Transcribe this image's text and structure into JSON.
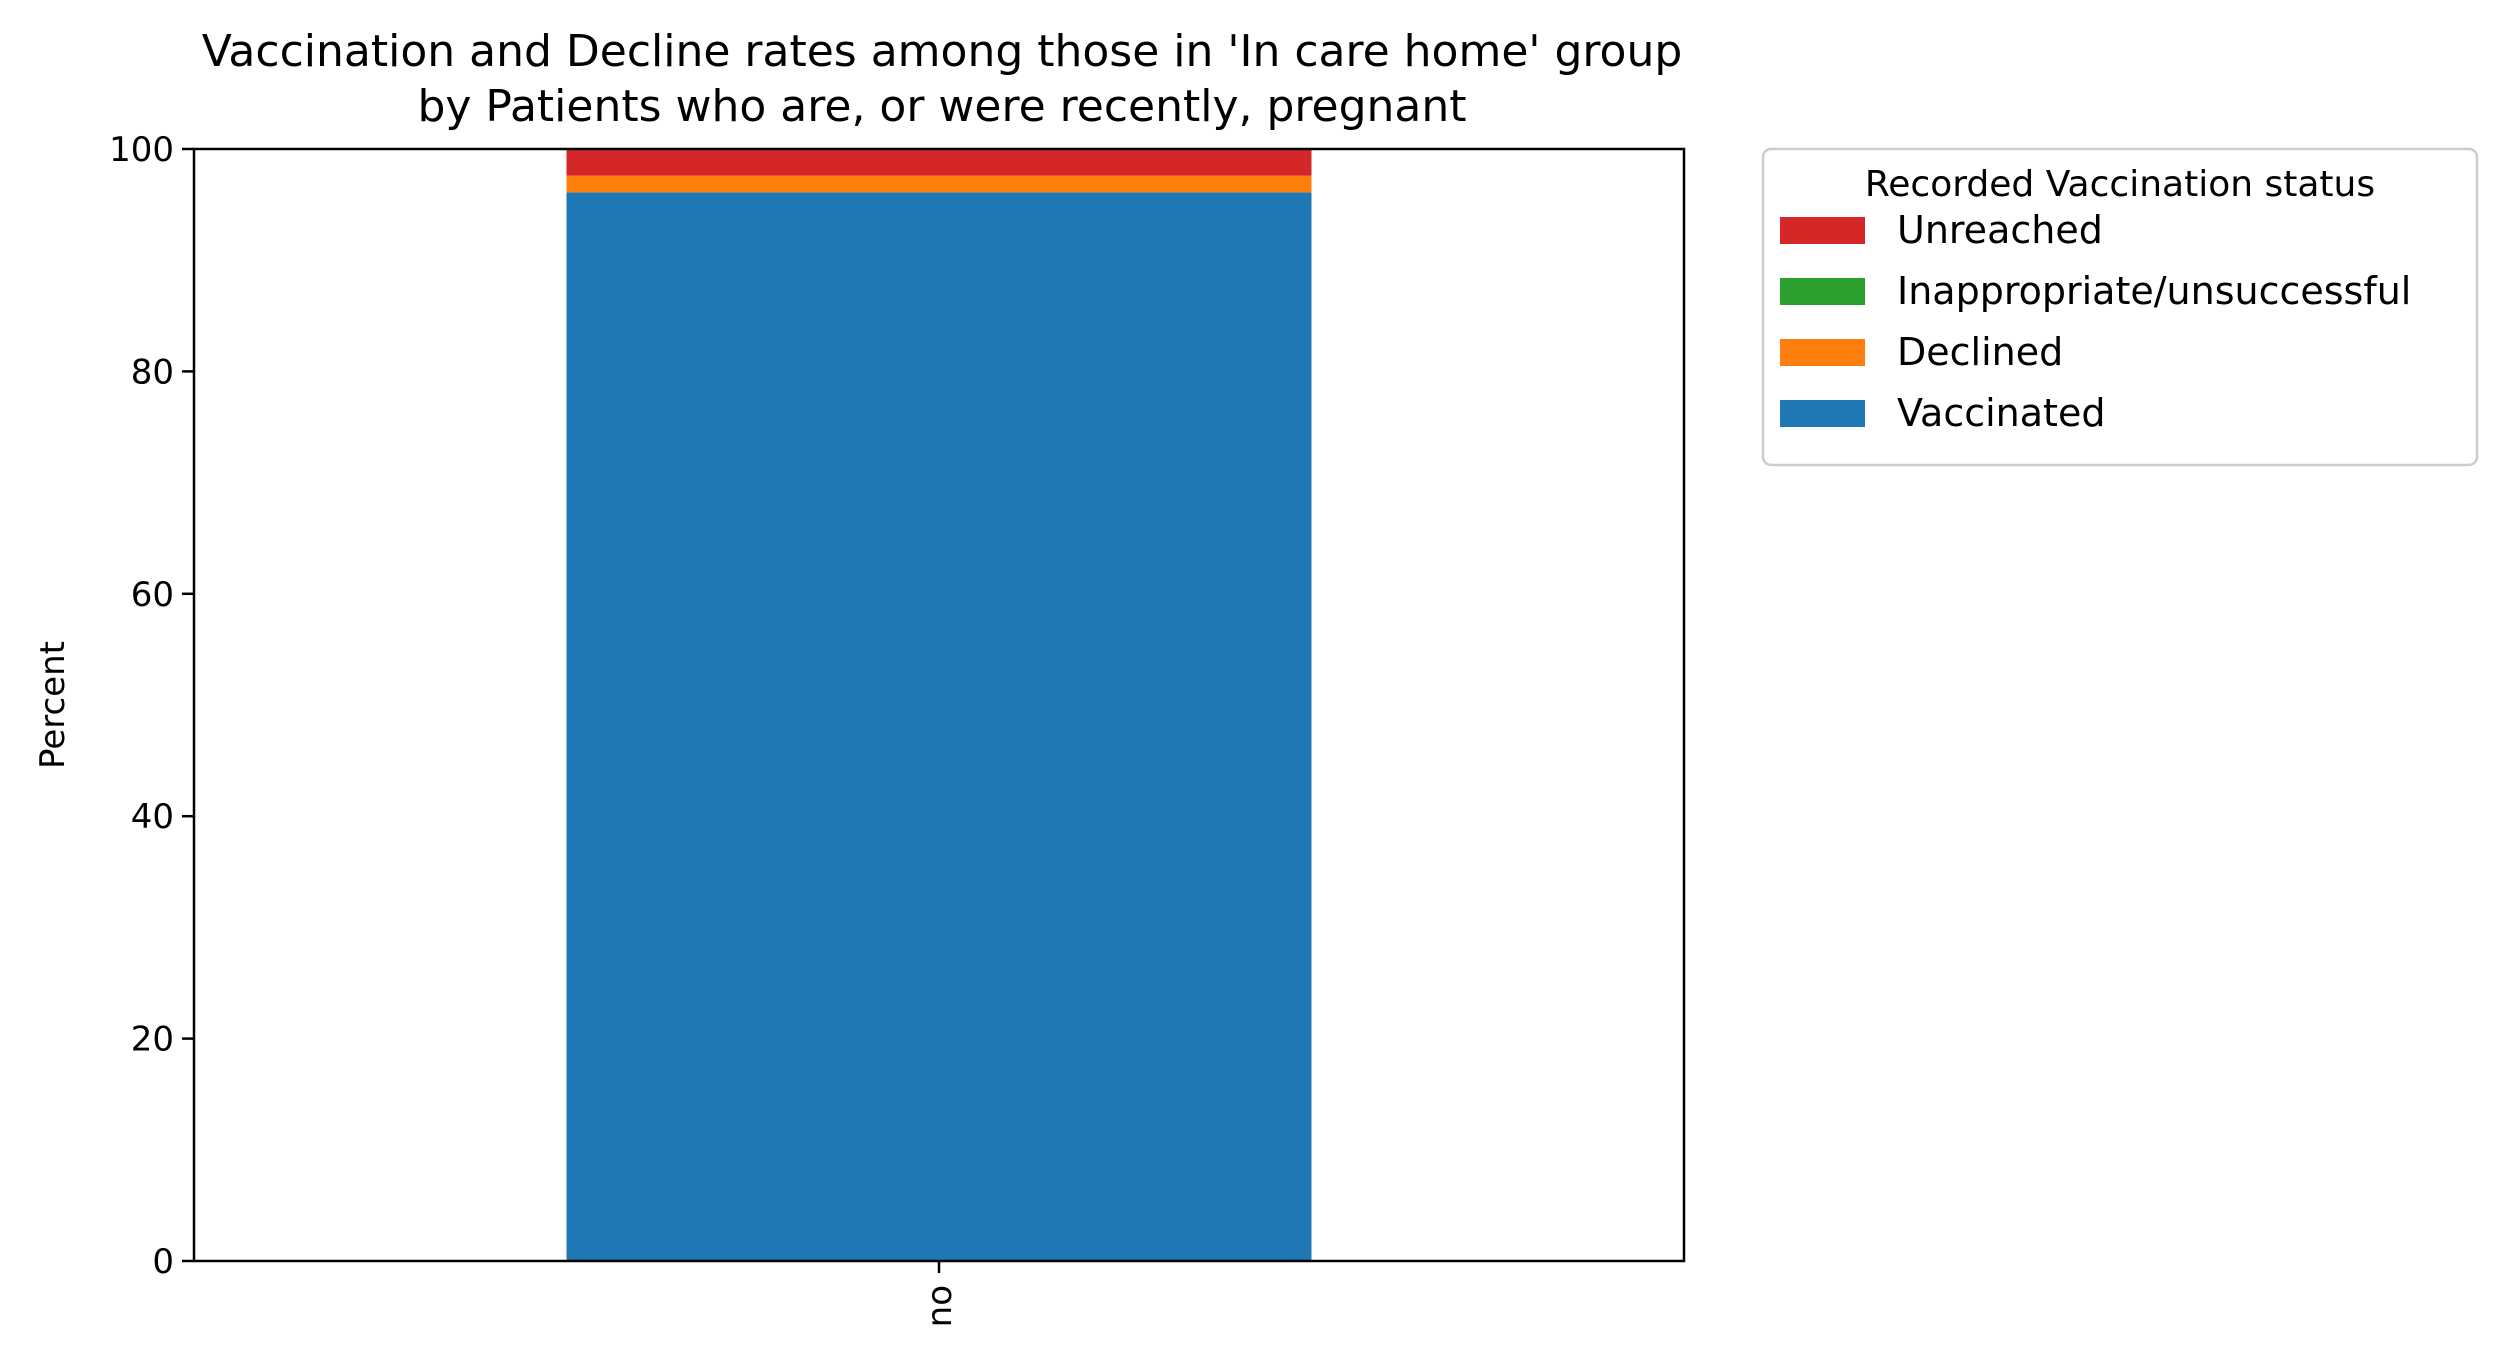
{
  "chart_data": {
    "type": "bar",
    "stacked": true,
    "title": "Vaccination and Decline rates among those in 'In care home' group",
    "subtitle": "by Patients who are, or were recently, pregnant",
    "xlabel": "",
    "ylabel": "Percent",
    "ylim": [
      0,
      100
    ],
    "yticks": [
      0,
      20,
      40,
      60,
      80,
      100
    ],
    "categories": [
      "no"
    ],
    "grid": false,
    "legend": {
      "title": "Recorded Vaccination status",
      "placement": "outside-top-right",
      "entries": [
        "Unreached",
        "Inappropriate/unsuccessful",
        "Declined",
        "Vaccinated"
      ]
    },
    "series": [
      {
        "name": "Vaccinated",
        "values": [
          96.1
        ],
        "color": "#1f77b4"
      },
      {
        "name": "Declined",
        "values": [
          1.5
        ],
        "color": "#ff7f0e"
      },
      {
        "name": "Inappropriate/unsuccessful",
        "values": [
          0.0
        ],
        "color": "#2ca02c"
      },
      {
        "name": "Unreached",
        "values": [
          2.4
        ],
        "color": "#d62728"
      }
    ]
  }
}
